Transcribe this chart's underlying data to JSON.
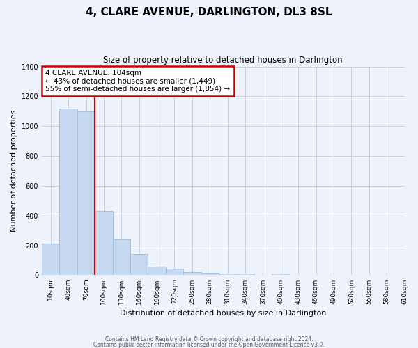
{
  "title": "4, CLARE AVENUE, DARLINGTON, DL3 8SL",
  "subtitle": "Size of property relative to detached houses in Darlington",
  "xlabel": "Distribution of detached houses by size in Darlington",
  "ylabel": "Number of detached properties",
  "bar_values": [
    210,
    1120,
    1100,
    430,
    240,
    140,
    60,
    45,
    20,
    15,
    13,
    12,
    0,
    10,
    0,
    0,
    0,
    0,
    0,
    0
  ],
  "bar_labels": [
    "10sqm",
    "40sqm",
    "70sqm",
    "100sqm",
    "130sqm",
    "160sqm",
    "190sqm",
    "220sqm",
    "250sqm",
    "280sqm",
    "310sqm",
    "340sqm",
    "370sqm",
    "400sqm",
    "430sqm",
    "460sqm",
    "490sqm",
    "520sqm",
    "550sqm",
    "580sqm",
    "610sqm"
  ],
  "bar_color": "#c5d8f0",
  "bar_edge_color": "#a0bbd8",
  "ylim": [
    0,
    1400
  ],
  "yticks": [
    0,
    200,
    400,
    600,
    800,
    1000,
    1200,
    1400
  ],
  "property_label": "4 CLARE AVENUE: 104sqm",
  "annotation_line1": "← 43% of detached houses are smaller (1,449)",
  "annotation_line2": "55% of semi-detached houses are larger (1,854) →",
  "vline_color": "#cc0000",
  "vline_x_bar_index": 3,
  "annotation_box_color": "#ffffff",
  "annotation_border_color": "#cc0000",
  "footer1": "Contains HM Land Registry data © Crown copyright and database right 2024.",
  "footer2": "Contains public sector information licensed under the Open Government Licence v3.0.",
  "bg_color": "#eef2fa",
  "plot_bg_color": "#eef2fa",
  "grid_color": "#c5cfdf"
}
